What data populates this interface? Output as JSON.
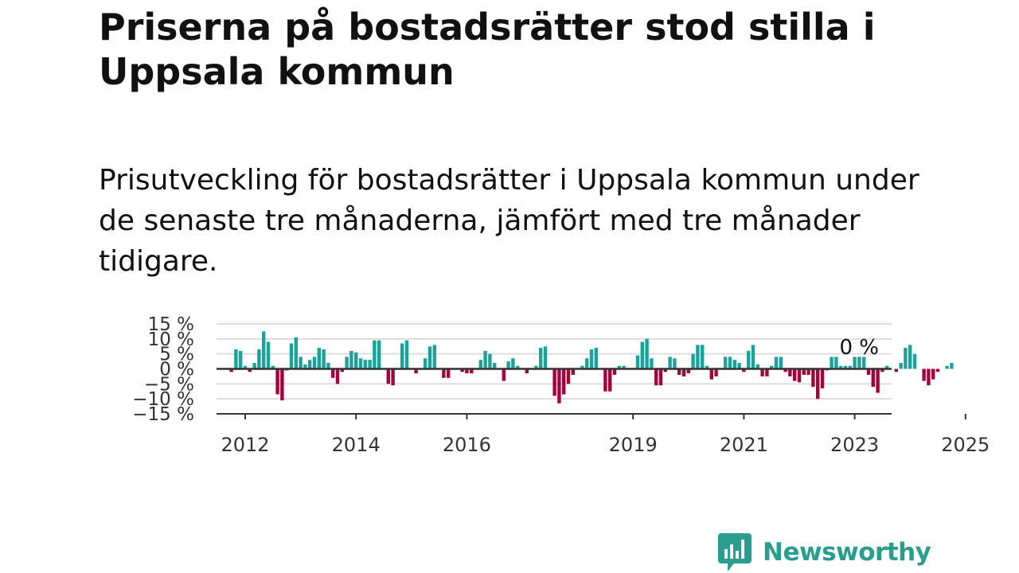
{
  "title": "Priserna på bostadsrätter stod stilla i Uppsala kommun",
  "subtitle": "Prisutveckling för bostadsrätter i Uppsala kommun under de senaste tre månaderna, jämfört med tre månader tidigare.",
  "brand": {
    "name": "Newsworthy",
    "color": "#2a9d8f",
    "icon": "bar-chart-speech-bubble-icon"
  },
  "chart_data": {
    "type": "bar",
    "unit": "%",
    "x_start": "2011-10",
    "frequency": "monthly",
    "ylim": [
      -15,
      15
    ],
    "y_ticks": [
      15,
      10,
      5,
      0,
      -5,
      -10,
      -15
    ],
    "y_tick_labels": [
      "15 %",
      "10 %",
      "5 %",
      "0 %",
      "−5 %",
      "−10 %",
      "−15 %"
    ],
    "x_ticks": [
      "2012",
      "2014",
      "2016",
      "2019",
      "2021",
      "2023",
      "2025"
    ],
    "colors": {
      "positive": "#1aa39a",
      "negative": "#a3003c",
      "zero_line": "#333333",
      "grid": "#dddddd"
    },
    "annotation": "0 %",
    "grid": true,
    "values": [
      -1,
      6.5,
      6,
      1,
      -1,
      2,
      6.5,
      12.5,
      9,
      1,
      -8.5,
      -10.5,
      -0.5,
      8.5,
      10.5,
      4,
      1.5,
      3,
      4,
      7,
      6.5,
      2,
      -3,
      -5,
      -1,
      4,
      6,
      5.5,
      3.5,
      3,
      3,
      9.5,
      9.5,
      0,
      -5,
      -5.5,
      0,
      8.5,
      9.5,
      0,
      -1.5,
      0,
      3.5,
      7.5,
      8,
      0,
      -3,
      -3,
      0,
      0,
      -1,
      -1.5,
      -1.5,
      0,
      3,
      6,
      5,
      2,
      0,
      -4,
      2.5,
      3.5,
      1,
      0,
      -1.5,
      0,
      1,
      7,
      7.5,
      0,
      -9,
      -11.5,
      -8.5,
      -5,
      -2,
      0,
      1,
      3.5,
      6.5,
      7,
      0,
      -7.5,
      -7.5,
      -2,
      1,
      1,
      0,
      0,
      4.5,
      9,
      10,
      3.5,
      -5.5,
      -5.5,
      -1,
      4,
      3.5,
      -2,
      -2.5,
      -1.5,
      5,
      8,
      8,
      1,
      -3.5,
      -2.5,
      0,
      4,
      4,
      3,
      2,
      -1,
      6,
      8,
      1.5,
      -2.5,
      -2.5,
      1,
      4,
      4,
      -1,
      -2.5,
      -4,
      -4.5,
      -2,
      -2,
      -6,
      -10,
      -6.5,
      -0.5,
      4,
      4,
      1,
      1,
      1,
      4,
      4,
      4,
      -2,
      -6,
      -8,
      -1,
      1,
      0,
      -1,
      2,
      7,
      8,
      5,
      0,
      -4,
      -5.5,
      -3.5,
      -1,
      0,
      1,
      2
    ]
  }
}
